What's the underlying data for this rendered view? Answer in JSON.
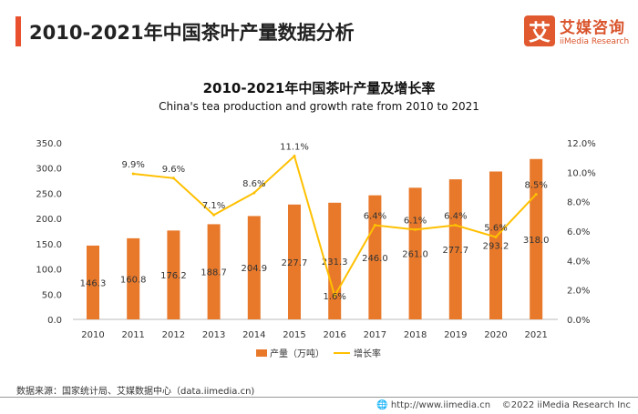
{
  "header": {
    "title": "2010-2021年中国茶叶产量数据分析"
  },
  "logo": {
    "icon_char": "艾",
    "cn": "艾媒咨询",
    "en": "iiMedia Research"
  },
  "chart_data": {
    "type": "bar+line",
    "title": "2010-2021年中国茶叶产量及增长率",
    "subtitle": "China's tea production and growth rate from 2010 to 2021",
    "categories": [
      "2010",
      "2011",
      "2012",
      "2013",
      "2014",
      "2015",
      "2016",
      "2017",
      "2018",
      "2019",
      "2020",
      "2021"
    ],
    "series": [
      {
        "name": "产量（万吨）",
        "type": "bar",
        "axis": "left",
        "color": "#E8792B",
        "values": [
          146.3,
          160.8,
          176.2,
          188.7,
          204.9,
          227.7,
          231.3,
          246.0,
          261.0,
          277.7,
          293.2,
          318.0
        ],
        "labels": [
          "146.3",
          "160.8",
          "176.2",
          "188.7",
          "204.9",
          "227.7",
          "231.3",
          "246.0",
          "261.0",
          "277.7",
          "293.2",
          "318.0"
        ]
      },
      {
        "name": "增长率",
        "type": "line",
        "axis": "right",
        "color": "#FFC000",
        "values": [
          null,
          9.9,
          9.6,
          7.1,
          8.6,
          11.1,
          1.6,
          6.4,
          6.1,
          6.4,
          5.6,
          8.5
        ],
        "labels": [
          "",
          "9.9%",
          "9.6%",
          "7.1%",
          "8.6%",
          "11.1%",
          "1.6%",
          "6.4%",
          "6.1%",
          "6.4%",
          "5.6%",
          "8.5%"
        ]
      }
    ],
    "left_axis": {
      "range": [
        0,
        350
      ],
      "ticks": [
        "0.0",
        "50.0",
        "100.0",
        "150.0",
        "200.0",
        "250.0",
        "300.0",
        "350.0"
      ]
    },
    "right_axis": {
      "range": [
        0,
        12
      ],
      "ticks": [
        "0.0%",
        "2.0%",
        "4.0%",
        "6.0%",
        "8.0%",
        "10.0%",
        "12.0%"
      ]
    },
    "grid": false,
    "legend": "bottom"
  },
  "footer": {
    "source": "数据来源：国家统计局、艾媒数据中心（data.iimedia.cn)",
    "url": "http://www.iimedia.cn",
    "copyright": "©2022  iiMedia Research  Inc"
  }
}
